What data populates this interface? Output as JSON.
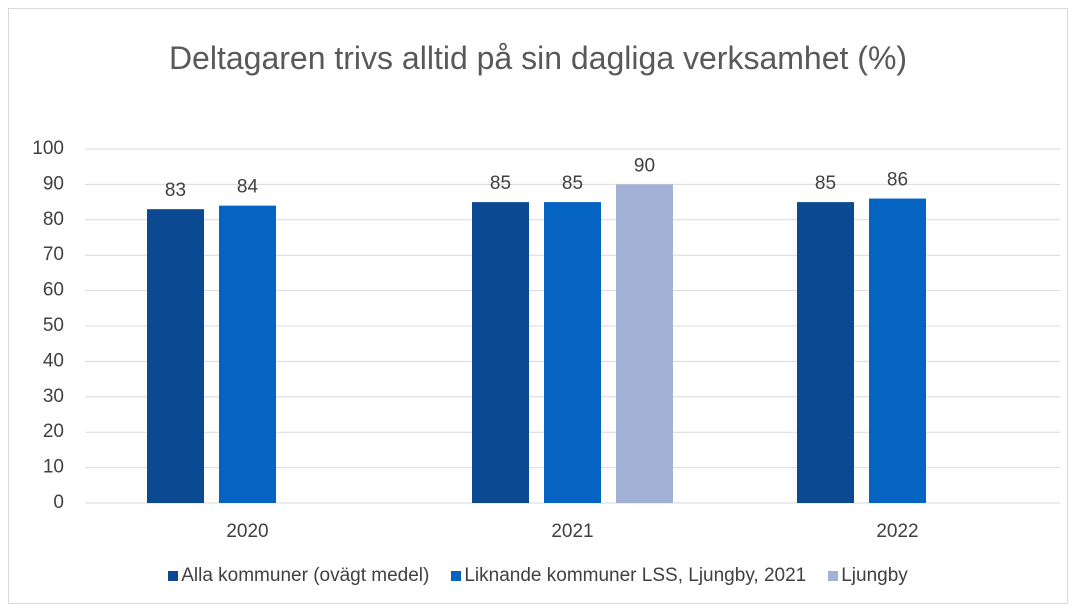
{
  "chart_data": {
    "type": "bar",
    "title": "Deltagaren trivs alltid på sin dagliga verksamhet (%)",
    "categories": [
      "2020",
      "2021",
      "2022"
    ],
    "series": [
      {
        "name": "Alla kommuner (ovägt medel)",
        "color": "#0b4a92",
        "values": [
          83,
          85,
          85
        ]
      },
      {
        "name": "Liknande kommuner LSS, Ljungby, 2021",
        "color": "#0563c1",
        "values": [
          84,
          85,
          86
        ]
      },
      {
        "name": "Ljungby",
        "color": "#a3b1d6",
        "values": [
          null,
          90,
          null
        ]
      }
    ],
    "ylim": [
      0,
      100
    ],
    "yticks": [
      0,
      10,
      20,
      30,
      40,
      50,
      60,
      70,
      80,
      90,
      100
    ],
    "grid": true,
    "legend": "bottom"
  }
}
